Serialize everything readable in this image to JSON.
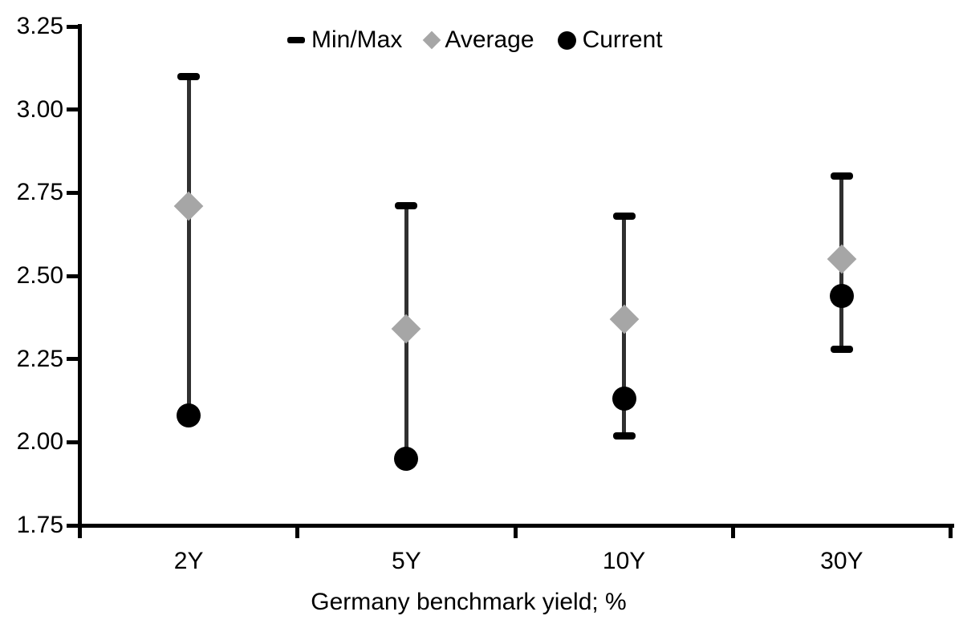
{
  "chart_data": {
    "type": "scatter",
    "subtype": "min-max-range-markers",
    "title": "",
    "xlabel": "Germany benchmark yield; %",
    "ylabel": "",
    "categories": [
      "2Y",
      "5Y",
      "10Y",
      "30Y"
    ],
    "series": [
      {
        "name": "Min/Max",
        "marker": "dash",
        "min": [
          2.08,
          1.95,
          2.02,
          2.28
        ],
        "max": [
          3.1,
          2.71,
          2.68,
          2.8
        ]
      },
      {
        "name": "Average",
        "marker": "diamond",
        "values": [
          2.71,
          2.34,
          2.37,
          2.55
        ]
      },
      {
        "name": "Current",
        "marker": "circle",
        "values": [
          2.08,
          1.95,
          2.13,
          2.44
        ]
      }
    ],
    "ylim": [
      1.75,
      3.25
    ],
    "ytick_step": 0.25,
    "yticks": [
      "3.25",
      "3.00",
      "2.75",
      "2.50",
      "2.25",
      "2.00",
      "1.75"
    ],
    "grid": false,
    "legend_position": "top-center"
  },
  "colors": {
    "background": "#ffffff",
    "text": "#000000",
    "axis": "#000000",
    "range_line": "#303030",
    "minmax_cap": "#000000",
    "average_gray": "#a6a6a6",
    "current_black": "#000000"
  }
}
